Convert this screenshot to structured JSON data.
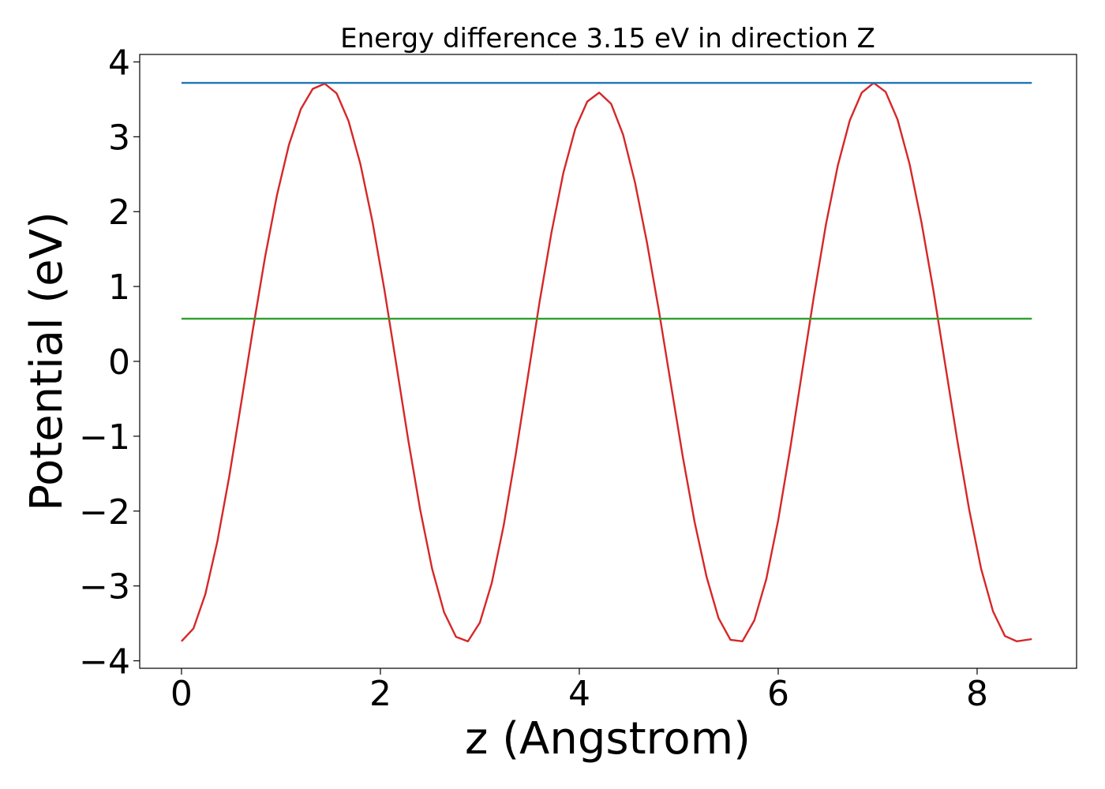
{
  "chart_data": {
    "type": "line",
    "title": "Energy difference 3.15 eV in direction Z",
    "xlabel": "z (Angstrom)",
    "ylabel": "Potential (eV)",
    "xlim": [
      -0.42,
      9.0
    ],
    "ylim": [
      -4.1,
      4.1
    ],
    "xticks": [
      0,
      2,
      4,
      6,
      8
    ],
    "yticks": [
      -4,
      -3,
      -2,
      -1,
      0,
      1,
      2,
      3,
      4
    ],
    "xtick_labels": [
      "0",
      "2",
      "4",
      "6",
      "8"
    ],
    "ytick_labels": [
      "−4",
      "−3",
      "−2",
      "−1",
      "0",
      "1",
      "2",
      "3",
      "4"
    ],
    "grid": false,
    "legend": "none",
    "series": [
      {
        "color": "#d62728",
        "x": [
          0.0,
          0.12,
          0.24,
          0.36,
          0.48,
          0.6,
          0.72,
          0.84,
          0.96,
          1.08,
          1.2,
          1.32,
          1.44,
          1.56,
          1.68,
          1.8,
          1.92,
          2.04,
          2.16,
          2.28,
          2.4,
          2.52,
          2.64,
          2.76,
          2.88,
          3.0,
          3.12,
          3.24,
          3.36,
          3.48,
          3.6,
          3.72,
          3.84,
          3.96,
          4.08,
          4.2,
          4.32,
          4.44,
          4.56,
          4.68,
          4.8,
          4.92,
          5.04,
          5.16,
          5.28,
          5.4,
          5.52,
          5.64,
          5.76,
          5.88,
          6.0,
          6.12,
          6.24,
          6.36,
          6.48,
          6.6,
          6.72,
          6.84,
          6.96,
          7.08,
          7.2,
          7.32,
          7.44,
          7.56,
          7.68,
          7.8,
          7.92,
          8.04,
          8.16,
          8.28,
          8.4,
          8.55
        ],
        "y": [
          -3.74,
          -3.57,
          -3.11,
          -2.41,
          -1.54,
          -0.56,
          0.44,
          1.39,
          2.22,
          2.89,
          3.37,
          3.64,
          3.71,
          3.58,
          3.21,
          2.63,
          1.87,
          0.96,
          -0.04,
          -1.05,
          -1.98,
          -2.77,
          -3.35,
          -3.68,
          -3.74,
          -3.49,
          -2.96,
          -2.19,
          -1.25,
          -0.23,
          0.79,
          1.72,
          2.52,
          3.11,
          3.47,
          3.59,
          3.44,
          3.03,
          2.39,
          1.59,
          0.68,
          -0.3,
          -1.27,
          -2.15,
          -2.88,
          -3.43,
          -3.72,
          -3.74,
          -3.46,
          -2.91,
          -2.12,
          -1.17,
          -0.14,
          0.88,
          1.83,
          2.62,
          3.22,
          3.59,
          3.72,
          3.6,
          3.23,
          2.64,
          1.86,
          0.95,
          -0.05,
          -1.05,
          -1.98,
          -2.77,
          -3.34,
          -3.67,
          -3.74,
          -3.71
        ]
      },
      {
        "color": "#1f77b4",
        "x": [
          0.0,
          8.55
        ],
        "y": [
          3.72,
          3.72
        ]
      },
      {
        "color": "#2ca02c",
        "x": [
          0.0,
          8.55
        ],
        "y": [
          0.57,
          0.57
        ]
      }
    ]
  }
}
